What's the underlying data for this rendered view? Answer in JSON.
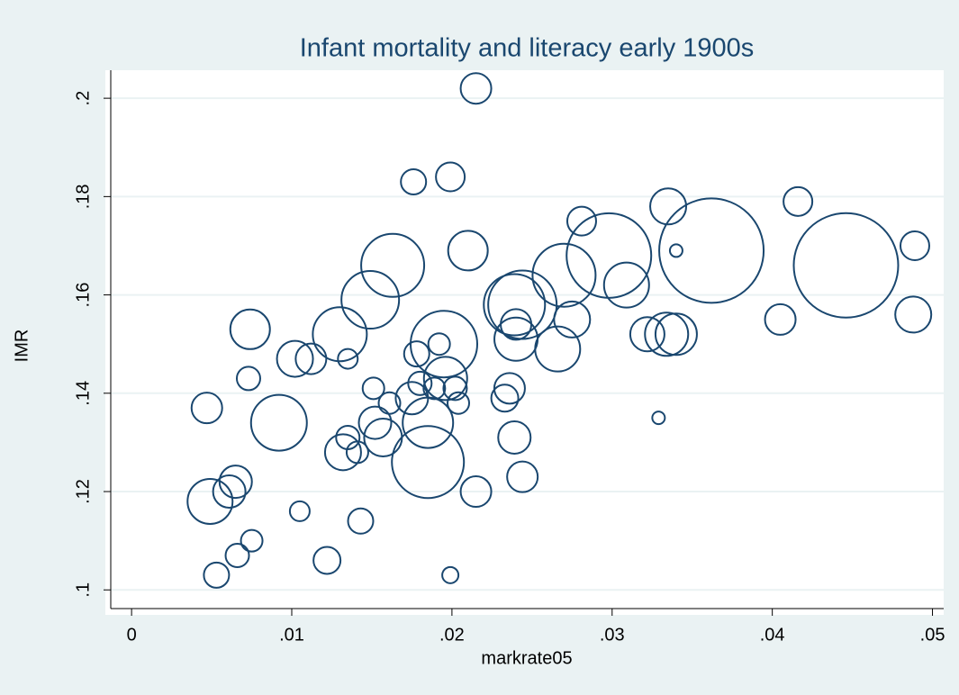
{
  "chart_data": {
    "type": "bubble",
    "title": "Infant mortality and literacy early 1900s",
    "x_label": "markrate05",
    "y_label": "IMR",
    "color": "#1a476f",
    "grid": true,
    "xlim": [
      -0.0013,
      0.0507
    ],
    "ylim": [
      0.0962,
      0.2057
    ],
    "xticks": [
      0,
      {
        "value": 0.01,
        "label": ".01"
      },
      {
        "value": 0.02,
        "label": ".02"
      },
      {
        "value": 0.03,
        "label": ".03"
      },
      {
        "value": 0.04,
        "label": ".04"
      },
      {
        "value": 0.05,
        "label": ".05"
      }
    ],
    "yticks": [
      {
        "value": 0.1,
        "label": ".1"
      },
      {
        "value": 0.12,
        "label": ".12"
      },
      {
        "value": 0.14,
        "label": ".14"
      },
      {
        "value": 0.16,
        "label": ".16"
      },
      {
        "value": 0.18,
        "label": ".18"
      },
      {
        "value": 0.2,
        "label": ".2"
      }
    ],
    "x": [
      0.0215,
      0.0176,
      0.0199,
      0.0281,
      0.0335,
      0.0416,
      0.0489,
      0.021,
      0.034,
      0.0362,
      0.0446,
      0.0298,
      0.0163,
      0.0149,
      0.027,
      0.0309,
      0.0239,
      0.0244,
      0.013,
      0.0074,
      0.0275,
      0.024,
      0.024,
      0.0322,
      0.0334,
      0.034,
      0.0405,
      0.0488,
      0.0195,
      0.0192,
      0.0266,
      0.0178,
      0.0102,
      0.0112,
      0.0135,
      0.0073,
      0.0196,
      0.018,
      0.0151,
      0.0236,
      0.0189,
      0.0202,
      0.0233,
      0.0175,
      0.0161,
      0.0204,
      0.0047,
      0.0092,
      0.0152,
      0.0185,
      0.0135,
      0.0157,
      0.0329,
      0.0239,
      0.0132,
      0.0141,
      0.0185,
      0.0244,
      0.0215,
      0.0065,
      0.0061,
      0.0049,
      0.0105,
      0.0143,
      0.0075,
      0.0066,
      0.0122,
      0.0053,
      0.0199
    ],
    "values": [
      0.202,
      0.183,
      0.184,
      0.175,
      0.178,
      0.179,
      0.17,
      0.169,
      0.169,
      0.169,
      0.166,
      0.168,
      0.166,
      0.159,
      0.164,
      0.162,
      0.158,
      0.158,
      0.152,
      0.153,
      0.155,
      0.154,
      0.151,
      0.152,
      0.152,
      0.152,
      0.155,
      0.156,
      0.15,
      0.15,
      0.149,
      0.148,
      0.147,
      0.147,
      0.147,
      0.143,
      0.143,
      0.142,
      0.141,
      0.141,
      0.141,
      0.141,
      0.139,
      0.139,
      0.138,
      0.138,
      0.137,
      0.134,
      0.134,
      0.134,
      0.131,
      0.131,
      0.135,
      0.131,
      0.128,
      0.128,
      0.126,
      0.123,
      0.12,
      0.122,
      0.12,
      0.118,
      0.116,
      0.114,
      0.11,
      0.107,
      0.106,
      0.103,
      0.103
    ],
    "sizes": [
      17,
      14,
      16,
      16,
      20,
      16,
      16,
      22,
      7,
      58,
      58,
      47,
      35,
      32,
      35,
      25,
      34,
      38,
      30,
      22,
      20,
      17,
      24,
      19,
      24,
      23,
      17,
      20,
      37,
      12,
      25,
      14,
      20,
      17,
      11,
      13,
      24,
      13,
      12,
      17,
      12,
      13,
      15,
      18,
      12,
      12,
      17,
      31,
      18,
      28,
      13,
      21,
      7,
      18,
      20,
      12,
      40,
      17,
      17,
      18,
      18,
      25,
      11,
      14,
      12,
      13,
      15,
      14,
      9
    ]
  }
}
